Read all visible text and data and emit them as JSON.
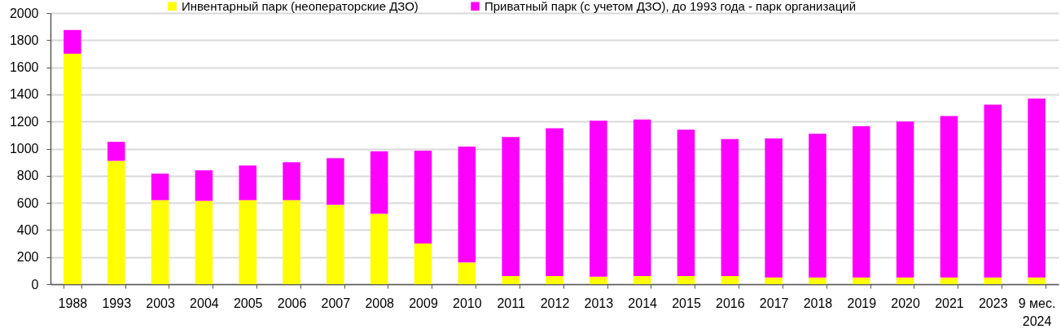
{
  "chart_data": {
    "type": "bar",
    "stacked": true,
    "categories": [
      "1988",
      "1993",
      "2003",
      "2004",
      "2005",
      "2006",
      "2007",
      "2008",
      "2009",
      "2010",
      "2011",
      "2012",
      "2013",
      "2014",
      "2015",
      "2016",
      "2017",
      "2018",
      "2019",
      "2020",
      "2021",
      "2023",
      "9 мес.\n2024"
    ],
    "series": [
      {
        "name": "Инвентарный парк (неоператорские ДЗО)",
        "color": "#ffff00",
        "values": [
          1700,
          910,
          620,
          615,
          620,
          620,
          585,
          520,
          300,
          160,
          60,
          60,
          55,
          60,
          60,
          60,
          50,
          50,
          50,
          50,
          50,
          50,
          50
        ]
      },
      {
        "name": "Приватный парк (с учетом ДЗО), до 1993 года - парк организаций",
        "color": "#ff00ff",
        "values": [
          175,
          140,
          195,
          225,
          255,
          280,
          345,
          460,
          685,
          855,
          1025,
          1090,
          1150,
          1155,
          1080,
          1010,
          1025,
          1060,
          1115,
          1150,
          1190,
          1275,
          1320
        ]
      }
    ],
    "ylim": [
      0,
      2000
    ],
    "yticks": [
      0,
      200,
      400,
      600,
      800,
      1000,
      1200,
      1400,
      1600,
      1800,
      2000
    ],
    "grid": "y",
    "legend": "top"
  }
}
